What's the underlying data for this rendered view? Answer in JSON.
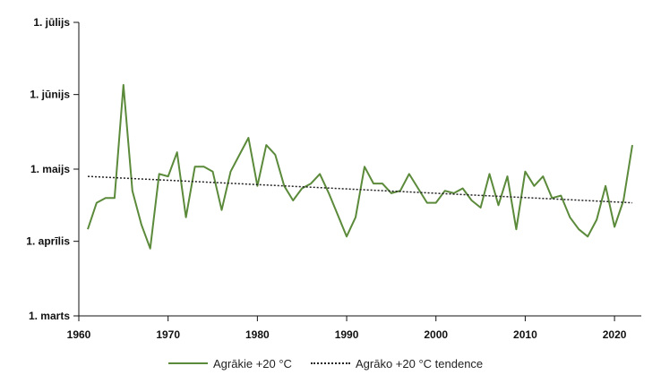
{
  "chart_data": {
    "type": "line",
    "title": "",
    "xlabel": "",
    "ylabel": "",
    "xlim": [
      1960,
      2023
    ],
    "x_ticks": [
      "1960",
      "1970",
      "1980",
      "1990",
      "2000",
      "2010",
      "2020"
    ],
    "y_ticks": [
      {
        "day": 0,
        "label": "1. marts"
      },
      {
        "day": 31,
        "label": "1. aprīlis"
      },
      {
        "day": 61,
        "label": "1. maijs"
      },
      {
        "day": 92,
        "label": "1. jūnijs"
      },
      {
        "day": 122,
        "label": "1. jūlijs"
      }
    ],
    "ylim": [
      0,
      122
    ],
    "y_units": "days since 1 March",
    "series": [
      {
        "name": "Agrākie +20 °C",
        "style": "solid",
        "color": "#5b8a3a",
        "x": [
          1961,
          1962,
          1963,
          1964,
          1965,
          1966,
          1967,
          1968,
          1969,
          1970,
          1971,
          1972,
          1973,
          1974,
          1975,
          1976,
          1977,
          1978,
          1979,
          1980,
          1981,
          1982,
          1983,
          1984,
          1985,
          1986,
          1987,
          1988,
          1989,
          1990,
          1991,
          1992,
          1993,
          1994,
          1995,
          1996,
          1997,
          1998,
          1999,
          2000,
          2001,
          2002,
          2003,
          2004,
          2005,
          2006,
          2007,
          2008,
          2009,
          2010,
          2011,
          2012,
          2013,
          2014,
          2015,
          2016,
          2017,
          2018,
          2019,
          2020,
          2021,
          2022
        ],
        "values": [
          36,
          47,
          49,
          49,
          96,
          52,
          38,
          28,
          59,
          58,
          68,
          41,
          62,
          62,
          60,
          44,
          60,
          67,
          74,
          54,
          71,
          67,
          54,
          48,
          53,
          55,
          59,
          51,
          42,
          33,
          41,
          62,
          55,
          55,
          51,
          52,
          59,
          53,
          47,
          47,
          52,
          51,
          53,
          48,
          45,
          59,
          46,
          58,
          36,
          60,
          54,
          58,
          49,
          50,
          41,
          36,
          33,
          40,
          54,
          37,
          48,
          71
        ]
      },
      {
        "name": "Agrāko +20 °C tendence",
        "style": "dotted",
        "color": "#222222",
        "x": [
          1961,
          2022
        ],
        "values": [
          58,
          47
        ]
      }
    ],
    "legend_position": "bottom-center",
    "grid": false
  }
}
